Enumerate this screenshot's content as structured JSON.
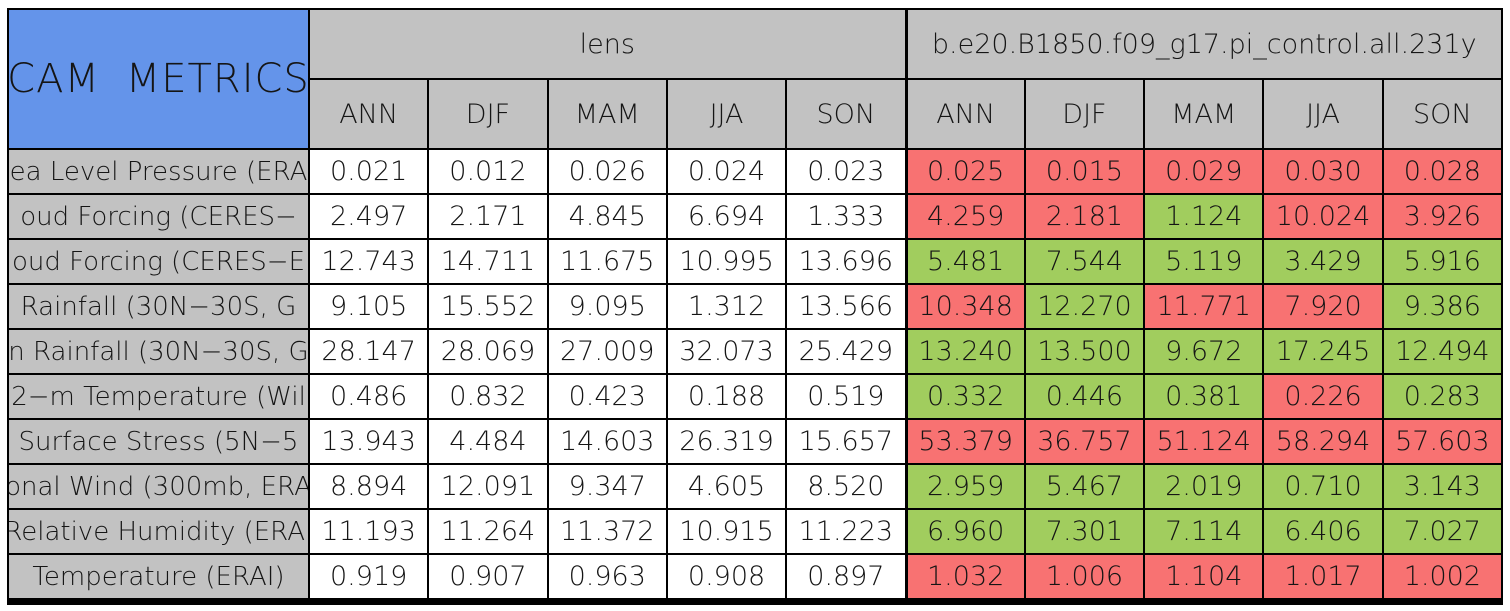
{
  "title": "CAM METRICS",
  "models": {
    "left": "lens",
    "right": "b.e20.B1850.f09_g17.pi_control.all.231y"
  },
  "seasons": [
    "ANN",
    "DJF",
    "MAM",
    "JJA",
    "SON"
  ],
  "colors": {
    "title_bg": "#6494ea",
    "header_bg": "#c2c2c2",
    "cell_bg": "#ffffff",
    "red": "#f87272",
    "green": "#a1cd5e",
    "border": "#000000",
    "text": "#151515"
  },
  "chart_data": {
    "type": "table",
    "title": "CAM METRICS",
    "column_groups": [
      "lens",
      "b.e20.B1850.f09_g17.pi_control.all.231y"
    ],
    "columns": [
      "ANN",
      "DJF",
      "MAM",
      "JJA",
      "SON",
      "ANN",
      "DJF",
      "MAM",
      "JJA",
      "SON"
    ],
    "cell_color_legend": {
      "red": "#f87272",
      "green": "#a1cd5e",
      "white": "#ffffff"
    },
    "rows": [
      {
        "label": "ea Level Pressure (ERA",
        "lens": [
          "0.021",
          "0.012",
          "0.026",
          "0.024",
          "0.023"
        ],
        "control": [
          {
            "value": "0.025",
            "status": "red"
          },
          {
            "value": "0.015",
            "status": "red"
          },
          {
            "value": "0.029",
            "status": "red"
          },
          {
            "value": "0.030",
            "status": "red"
          },
          {
            "value": "0.028",
            "status": "red"
          }
        ]
      },
      {
        "label": "oud Forcing (CERES−",
        "lens": [
          "2.497",
          "2.171",
          "4.845",
          "6.694",
          "1.333"
        ],
        "control": [
          {
            "value": "4.259",
            "status": "red"
          },
          {
            "value": "2.181",
            "status": "red"
          },
          {
            "value": "1.124",
            "status": "green"
          },
          {
            "value": "10.024",
            "status": "red"
          },
          {
            "value": "3.926",
            "status": "red"
          }
        ]
      },
      {
        "label": "oud Forcing (CERES−E",
        "lens": [
          "12.743",
          "14.711",
          "11.675",
          "10.995",
          "13.696"
        ],
        "control": [
          {
            "value": "5.481",
            "status": "green"
          },
          {
            "value": "7.544",
            "status": "green"
          },
          {
            "value": "5.119",
            "status": "green"
          },
          {
            "value": "3.429",
            "status": "green"
          },
          {
            "value": "5.916",
            "status": "green"
          }
        ]
      },
      {
        "label": "Rainfall (30N−30S, G",
        "lens": [
          "9.105",
          "15.552",
          "9.095",
          "1.312",
          "13.566"
        ],
        "control": [
          {
            "value": "10.348",
            "status": "red"
          },
          {
            "value": "12.270",
            "status": "green"
          },
          {
            "value": "11.771",
            "status": "red"
          },
          {
            "value": "7.920",
            "status": "red"
          },
          {
            "value": "9.386",
            "status": "green"
          }
        ]
      },
      {
        "label": "n Rainfall (30N−30S, G",
        "lens": [
          "28.147",
          "28.069",
          "27.009",
          "32.073",
          "25.429"
        ],
        "control": [
          {
            "value": "13.240",
            "status": "green"
          },
          {
            "value": "13.500",
            "status": "green"
          },
          {
            "value": "9.672",
            "status": "green"
          },
          {
            "value": "17.245",
            "status": "green"
          },
          {
            "value": "12.494",
            "status": "green"
          }
        ]
      },
      {
        "label": "2−m Temperature (Wil",
        "lens": [
          "0.486",
          "0.832",
          "0.423",
          "0.188",
          "0.519"
        ],
        "control": [
          {
            "value": "0.332",
            "status": "green"
          },
          {
            "value": "0.446",
            "status": "green"
          },
          {
            "value": "0.381",
            "status": "green"
          },
          {
            "value": "0.226",
            "status": "red"
          },
          {
            "value": "0.283",
            "status": "green"
          }
        ]
      },
      {
        "label": "Surface Stress (5N−5",
        "lens": [
          "13.943",
          "4.484",
          "14.603",
          "26.319",
          "15.657"
        ],
        "control": [
          {
            "value": "53.379",
            "status": "red"
          },
          {
            "value": "36.757",
            "status": "red"
          },
          {
            "value": "51.124",
            "status": "red"
          },
          {
            "value": "58.294",
            "status": "red"
          },
          {
            "value": "57.603",
            "status": "red"
          }
        ]
      },
      {
        "label": "onal Wind (300mb, ERA",
        "lens": [
          "8.894",
          "12.091",
          "9.347",
          "4.605",
          "8.520"
        ],
        "control": [
          {
            "value": "2.959",
            "status": "green"
          },
          {
            "value": "5.467",
            "status": "green"
          },
          {
            "value": "2.019",
            "status": "green"
          },
          {
            "value": "0.710",
            "status": "green"
          },
          {
            "value": "3.143",
            "status": "green"
          }
        ]
      },
      {
        "label": "Relative Humidity (ERAI",
        "lens": [
          "11.193",
          "11.264",
          "11.372",
          "10.915",
          "11.223"
        ],
        "control": [
          {
            "value": "6.960",
            "status": "green"
          },
          {
            "value": "7.301",
            "status": "green"
          },
          {
            "value": "7.114",
            "status": "green"
          },
          {
            "value": "6.406",
            "status": "green"
          },
          {
            "value": "7.027",
            "status": "green"
          }
        ]
      },
      {
        "label": "Temperature (ERAI)",
        "lens": [
          "0.919",
          "0.907",
          "0.963",
          "0.908",
          "0.897"
        ],
        "control": [
          {
            "value": "1.032",
            "status": "red"
          },
          {
            "value": "1.006",
            "status": "red"
          },
          {
            "value": "1.104",
            "status": "red"
          },
          {
            "value": "1.017",
            "status": "red"
          },
          {
            "value": "1.002",
            "status": "red"
          }
        ]
      }
    ]
  }
}
